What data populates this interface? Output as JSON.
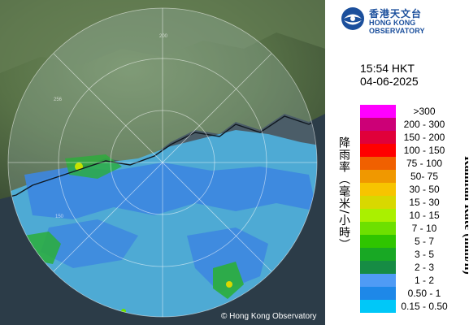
{
  "header": {
    "org_name_zh": "香港天文台",
    "org_name_en": "HONG KONG OBSERVATORY"
  },
  "time_label": "15:54 HKT",
  "date_label": "04-06-2025",
  "legend": {
    "unit_zh": "降雨率（毫米/小時）",
    "unit_en": "Rainfall Rate (mm/h)",
    "items": [
      {
        "range": ">300",
        "color": "#ff00ff"
      },
      {
        "range": "200 - 300",
        "color": "#cc0077"
      },
      {
        "range": "150 - 200",
        "color": "#e0003a"
      },
      {
        "range": "100 - 150",
        "color": "#ff0000"
      },
      {
        "range": "75 - 100",
        "color": "#f06000"
      },
      {
        "range": "50- 75",
        "color": "#f09800"
      },
      {
        "range": "30 - 50",
        "color": "#f7c400"
      },
      {
        "range": "15 - 30",
        "color": "#d8d800"
      },
      {
        "range": "10 - 15",
        "color": "#aaf000"
      },
      {
        "range": "7 - 10",
        "color": "#6de000"
      },
      {
        "range": "5 - 7",
        "color": "#2fc500"
      },
      {
        "range": "3 - 5",
        "color": "#18a824"
      },
      {
        "range": "2 - 3",
        "color": "#168c44"
      },
      {
        "range": "1 - 2",
        "color": "#4f9bf5"
      },
      {
        "range": "0.50 - 1",
        "color": "#1e88e8"
      },
      {
        "range": "0.15 - 0.50",
        "color": "#00c8f8"
      }
    ]
  },
  "map": {
    "range_ring_labels": [
      "200",
      "256",
      "150"
    ],
    "copyright": "© Hong Kong Observatory"
  }
}
